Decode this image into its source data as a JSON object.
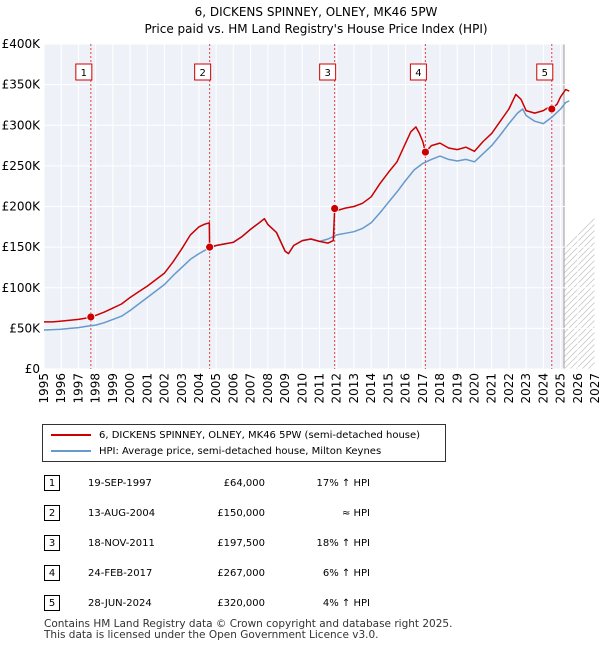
{
  "chart_data": {
    "type": "line",
    "title": "6, DICKENS SPINNEY, OLNEY, MK46 5PW",
    "subtitle": "Price paid vs. HM Land Registry's House Price Index (HPI)",
    "xlim": [
      1995,
      2027
    ],
    "ylim": [
      0,
      400000
    ],
    "y_ticks": [
      0,
      50000,
      100000,
      150000,
      200000,
      250000,
      300000,
      350000,
      400000
    ],
    "y_tick_labels": [
      "£0",
      "£50K",
      "£100K",
      "£150K",
      "£200K",
      "£250K",
      "£300K",
      "£350K",
      "£400K"
    ],
    "x_ticks": [
      "1995",
      "1996",
      "1997",
      "1998",
      "1999",
      "2000",
      "2001",
      "2002",
      "2003",
      "2004",
      "2005",
      "2006",
      "2007",
      "2008",
      "2009",
      "2010",
      "2011",
      "2012",
      "2013",
      "2014",
      "2015",
      "2016",
      "2017",
      "2018",
      "2019",
      "2020",
      "2021",
      "2022",
      "2023",
      "2024",
      "2025",
      "2026",
      "2027"
    ],
    "grid": true,
    "forecast_start": 2025.2,
    "series": [
      {
        "name": "6, DICKENS SPINNEY, OLNEY, MK46 5PW (semi-detached house)",
        "color": "#cc0000",
        "x": [
          1995.0,
          1995.5,
          1996.0,
          1996.5,
          1997.0,
          1997.4,
          1997.72,
          1998.0,
          1998.5,
          1999.0,
          1999.5,
          2000.0,
          2000.5,
          2001.0,
          2001.5,
          2002.0,
          2002.5,
          2003.0,
          2003.5,
          2004.0,
          2004.3,
          2004.6,
          2004.62,
          2005.0,
          2005.5,
          2006.0,
          2006.5,
          2007.0,
          2007.5,
          2007.8,
          2008.0,
          2008.5,
          2009.0,
          2009.2,
          2009.5,
          2010.0,
          2010.5,
          2011.0,
          2011.5,
          2011.8,
          2011.88,
          2012.0,
          2012.5,
          2013.0,
          2013.5,
          2014.0,
          2014.5,
          2015.0,
          2015.5,
          2016.0,
          2016.3,
          2016.6,
          2016.8,
          2017.0,
          2017.15,
          2017.5,
          2018.0,
          2018.5,
          2019.0,
          2019.5,
          2020.0,
          2020.5,
          2021.0,
          2021.5,
          2022.0,
          2022.4,
          2022.7,
          2023.0,
          2023.5,
          2024.0,
          2024.3,
          2024.49,
          2024.8,
          2025.0,
          2025.3,
          2025.5
        ],
        "values": [
          58000,
          58000,
          59000,
          60000,
          61000,
          62500,
          64000,
          66000,
          70000,
          75000,
          80000,
          88000,
          95000,
          102000,
          110000,
          118000,
          132000,
          148000,
          165000,
          175000,
          178000,
          180000,
          150000,
          152000,
          154000,
          156000,
          163000,
          172000,
          180000,
          185000,
          178000,
          168000,
          145000,
          142000,
          152000,
          158000,
          160000,
          157000,
          155000,
          158000,
          197500,
          195000,
          198000,
          200000,
          204000,
          212000,
          228000,
          242000,
          255000,
          278000,
          292000,
          298000,
          290000,
          280000,
          267000,
          275000,
          278000,
          272000,
          270000,
          273000,
          268000,
          280000,
          290000,
          305000,
          320000,
          338000,
          332000,
          318000,
          315000,
          318000,
          322000,
          320000,
          326000,
          335000,
          344000,
          342000
        ]
      },
      {
        "name": "HPI: Average price, semi-detached house, Milton Keynes",
        "color": "#6699cc",
        "x": [
          1995.0,
          1995.5,
          1996.0,
          1996.5,
          1997.0,
          1997.5,
          1998.0,
          1998.5,
          1999.0,
          1999.5,
          2000.0,
          2000.5,
          2001.0,
          2001.5,
          2002.0,
          2002.5,
          2003.0,
          2003.5,
          2004.0,
          2004.5,
          2005.0,
          2005.5,
          2006.0,
          2006.5,
          2007.0,
          2007.5,
          2007.8,
          2008.0,
          2008.5,
          2009.0,
          2009.2,
          2009.5,
          2010.0,
          2010.5,
          2011.0,
          2011.5,
          2012.0,
          2012.5,
          2013.0,
          2013.5,
          2014.0,
          2014.5,
          2015.0,
          2015.5,
          2016.0,
          2016.5,
          2017.0,
          2017.5,
          2018.0,
          2018.5,
          2019.0,
          2019.5,
          2020.0,
          2020.5,
          2021.0,
          2021.5,
          2022.0,
          2022.5,
          2022.8,
          2023.0,
          2023.5,
          2024.0,
          2024.5,
          2025.0,
          2025.3,
          2025.5
        ],
        "values": [
          48000,
          48500,
          49000,
          50000,
          51000,
          52500,
          54000,
          57000,
          61000,
          65000,
          72000,
          80000,
          88000,
          96000,
          104000,
          115000,
          125000,
          135000,
          142000,
          148000,
          152000,
          154000,
          156000,
          163000,
          172000,
          180000,
          185000,
          178000,
          168000,
          145000,
          142000,
          152000,
          158000,
          160000,
          157000,
          160000,
          165000,
          167000,
          169000,
          173000,
          180000,
          192000,
          205000,
          218000,
          232000,
          245000,
          253000,
          258000,
          262000,
          258000,
          256000,
          258000,
          255000,
          265000,
          275000,
          288000,
          302000,
          315000,
          320000,
          312000,
          305000,
          302000,
          310000,
          320000,
          328000,
          330000
        ]
      }
    ],
    "sales": [
      {
        "num": "1",
        "x": 1997.72,
        "price": 64000
      },
      {
        "num": "2",
        "x": 2004.62,
        "price": 150000
      },
      {
        "num": "3",
        "x": 2011.88,
        "price": 197500
      },
      {
        "num": "4",
        "x": 2017.15,
        "price": 267000
      },
      {
        "num": "5",
        "x": 2024.49,
        "price": 320000
      }
    ]
  },
  "legend": {
    "property_label": "6, DICKENS SPINNEY, OLNEY, MK46 5PW (semi-detached house)",
    "hpi_label": "HPI: Average price, semi-detached house, Milton Keynes"
  },
  "transactions": [
    {
      "num": "1",
      "date": "19-SEP-1997",
      "price": "£64,000",
      "hpi": "17% ↑ HPI"
    },
    {
      "num": "2",
      "date": "13-AUG-2004",
      "price": "£150,000",
      "hpi": "≈ HPI"
    },
    {
      "num": "3",
      "date": "18-NOV-2011",
      "price": "£197,500",
      "hpi": "18% ↑ HPI"
    },
    {
      "num": "4",
      "date": "24-FEB-2017",
      "price": "£267,000",
      "hpi": "6% ↑ HPI"
    },
    {
      "num": "5",
      "date": "28-JUN-2024",
      "price": "£320,000",
      "hpi": "4% ↑ HPI"
    }
  ],
  "footer": {
    "line1": "Contains HM Land Registry data © Crown copyright and database right 2025.",
    "line2": "This data is licensed under the Open Government Licence v3.0."
  }
}
